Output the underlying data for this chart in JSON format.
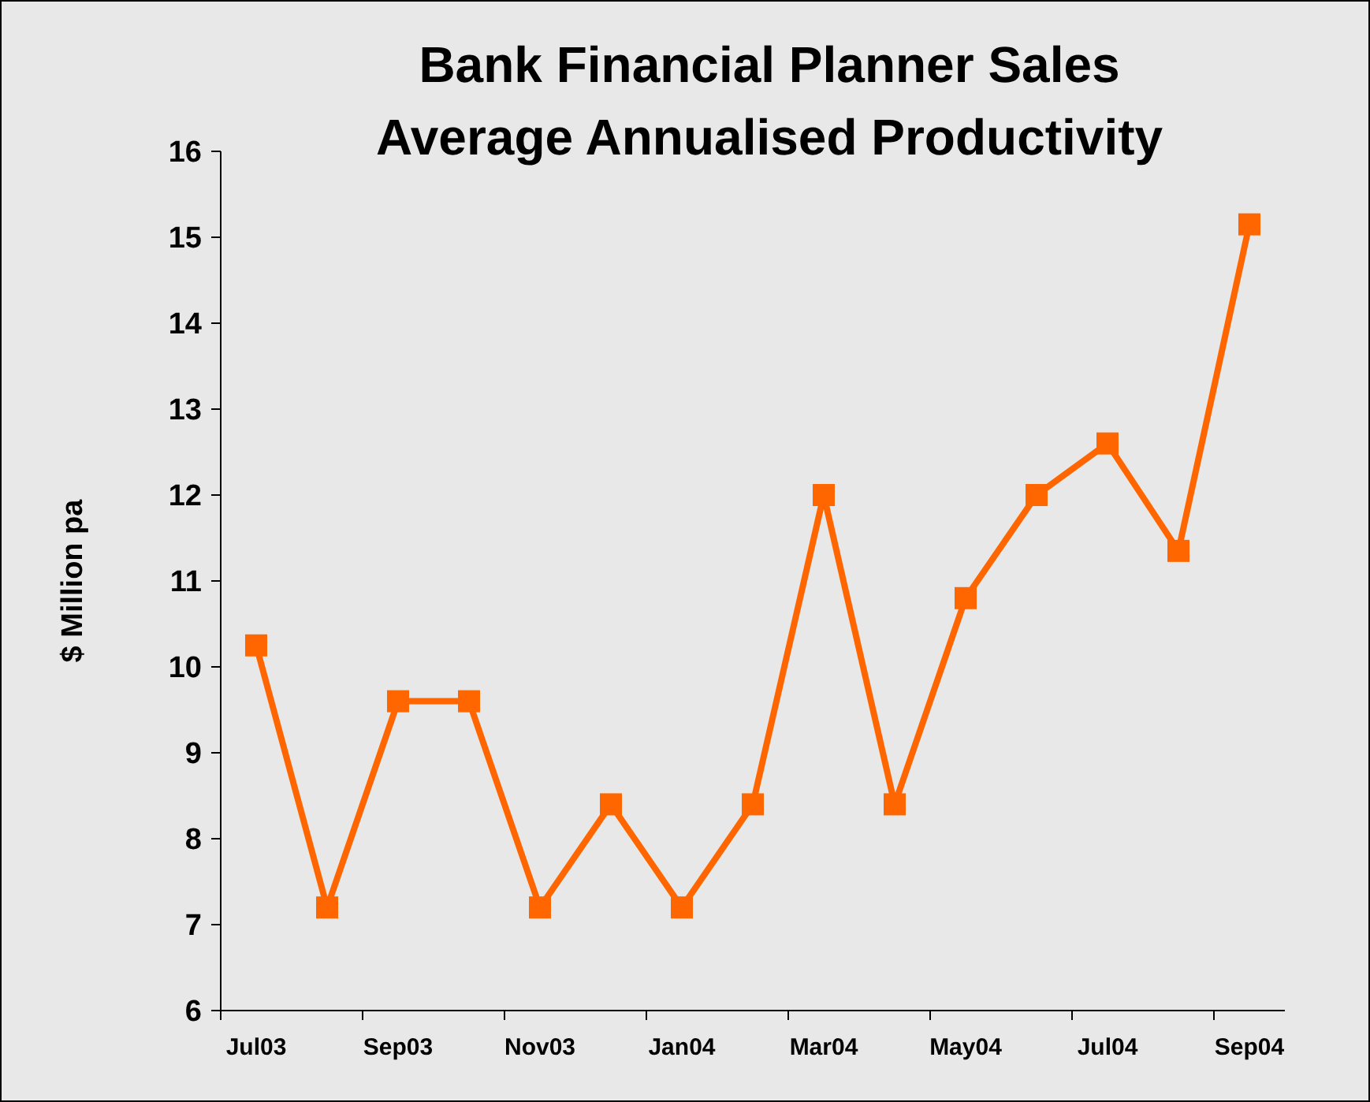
{
  "chart_data": {
    "type": "line",
    "title": "Bank Financial Planner Sales",
    "subtitle": "Average Annualised Productivity",
    "ylabel": "$ Million pa",
    "categories": [
      "Jul03",
      null,
      "Sep03",
      null,
      "Nov03",
      null,
      "Jan04",
      null,
      "Mar04",
      null,
      "May04",
      null,
      "Jul04",
      null,
      "Sep04"
    ],
    "series": [
      {
        "color": "#ff6600",
        "values": [
          10.25,
          7.2,
          9.6,
          9.6,
          7.2,
          8.4,
          7.2,
          8.4,
          12.0,
          8.4,
          10.8,
          12.0,
          12.6,
          11.35,
          15.15
        ]
      }
    ],
    "ylim": [
      6,
      16
    ],
    "yticks": [
      6,
      7,
      8,
      9,
      10,
      11,
      12,
      13,
      14,
      15,
      16
    ],
    "marker": "square",
    "line_style": "solid",
    "grid": false
  }
}
